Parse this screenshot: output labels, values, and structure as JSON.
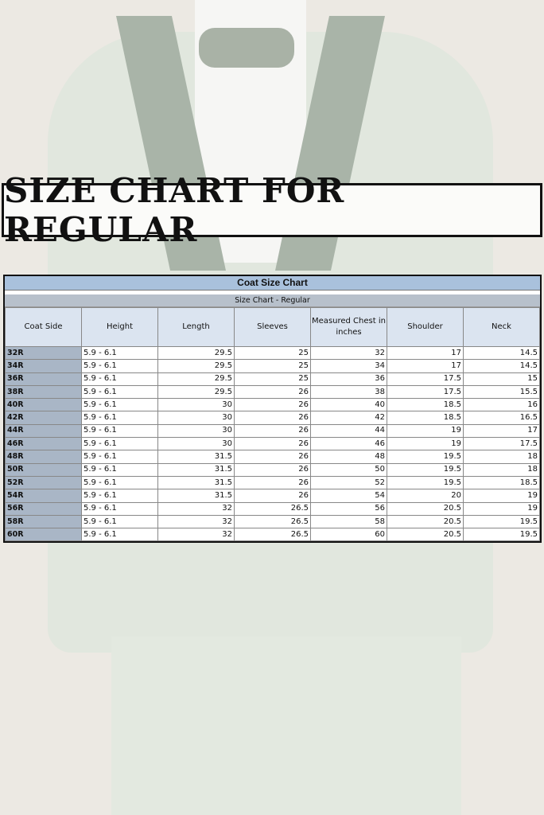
{
  "banner": {
    "title": "SIZE CHART FOR REGULAR"
  },
  "table": {
    "title": "Coat Size Chart",
    "subtitle": "Size Chart - Regular",
    "headers": [
      "Coat Side",
      "Height",
      "Length",
      "Sleeves",
      "Measured Chest in inches",
      "Shoulder",
      "Neck"
    ],
    "rows": [
      [
        "32R",
        "5.9 - 6.1",
        "29.5",
        "25",
        "32",
        "17",
        "14.5"
      ],
      [
        "34R",
        "5.9 - 6.1",
        "29.5",
        "25",
        "34",
        "17",
        "14.5"
      ],
      [
        "36R",
        "5.9 - 6.1",
        "29.5",
        "25",
        "36",
        "17.5",
        "15"
      ],
      [
        "38R",
        "5.9 - 6.1",
        "29.5",
        "26",
        "38",
        "17.5",
        "15.5"
      ],
      [
        "40R",
        "5.9 - 6.1",
        "30",
        "26",
        "40",
        "18.5",
        "16"
      ],
      [
        "42R",
        "5.9 - 6.1",
        "30",
        "26",
        "42",
        "18.5",
        "16.5"
      ],
      [
        "44R",
        "5.9 - 6.1",
        "30",
        "26",
        "44",
        "19",
        "17"
      ],
      [
        "46R",
        "5.9 - 6.1",
        "30",
        "26",
        "46",
        "19",
        "17.5"
      ],
      [
        "48R",
        "5.9 - 6.1",
        "31.5",
        "26",
        "48",
        "19.5",
        "18"
      ],
      [
        "50R",
        "5.9 - 6.1",
        "31.5",
        "26",
        "50",
        "19.5",
        "18"
      ],
      [
        "52R",
        "5.9 - 6.1",
        "31.5",
        "26",
        "52",
        "19.5",
        "18.5"
      ],
      [
        "54R",
        "5.9 - 6.1",
        "31.5",
        "26",
        "54",
        "20",
        "19"
      ],
      [
        "56R",
        "5.9 - 6.1",
        "32",
        "26.5",
        "56",
        "20.5",
        "19"
      ],
      [
        "58R",
        "5.9 - 6.1",
        "32",
        "26.5",
        "58",
        "20.5",
        "19.5"
      ],
      [
        "60R",
        "5.9 - 6.1",
        "32",
        "26.5",
        "60",
        "20.5",
        "19.5"
      ]
    ]
  }
}
